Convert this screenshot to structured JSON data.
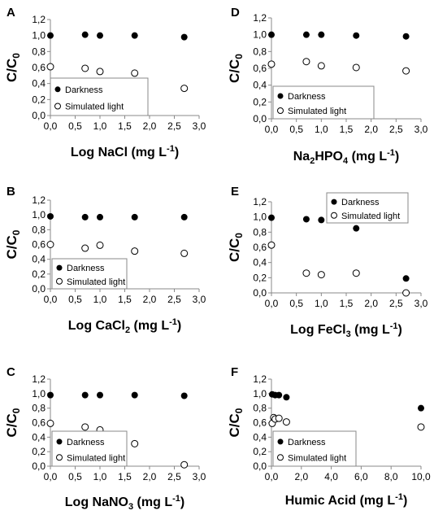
{
  "chart_data": [
    {
      "id": "A",
      "letter": "A",
      "type": "scatter",
      "ylabel": "C/C",
      "ylabel_sub": "0",
      "xlabel": [
        [
          "Log NaCl (mg L",
          "n"
        ],
        [
          "-1",
          "sup"
        ],
        [
          ")",
          "n"
        ]
      ],
      "xlim": [
        0,
        3
      ],
      "ylim": [
        0,
        1.2
      ],
      "xticks": [
        "0,0",
        "0,5",
        "1,0",
        "1,5",
        "2,0",
        "2,5",
        "3,0"
      ],
      "yticks": [
        "0,0",
        "0,2",
        "0,4",
        "0,6",
        "0,8",
        "1,0",
        "1,2"
      ],
      "legend_position": "lower-left",
      "series": [
        {
          "name": "Darkness",
          "marker": "filled",
          "x": [
            0,
            0.7,
            1.0,
            1.7,
            2.7
          ],
          "y": [
            1.0,
            1.01,
            1.0,
            1.0,
            0.98
          ]
        },
        {
          "name": "Simulated light",
          "marker": "open",
          "x": [
            0,
            0.7,
            1.0,
            1.7,
            2.7
          ],
          "y": [
            0.61,
            0.59,
            0.55,
            0.53,
            0.34
          ]
        }
      ]
    },
    {
      "id": "D",
      "letter": "D",
      "type": "scatter",
      "ylabel": "C/C",
      "ylabel_sub": "0",
      "xlabel": [
        [
          "Na",
          "n"
        ],
        [
          "2",
          "sub"
        ],
        [
          "HPO",
          "n"
        ],
        [
          "4",
          "sub"
        ],
        [
          " (mg L",
          "n"
        ],
        [
          "-1",
          "sup"
        ],
        [
          ")",
          "n"
        ]
      ],
      "xlim": [
        0,
        3
      ],
      "ylim": [
        0,
        1.2
      ],
      "xticks": [
        "0,0",
        "0,5",
        "1,0",
        "1,5",
        "2,0",
        "2,5",
        "3,0"
      ],
      "yticks": [
        "0,0",
        "0,2",
        "0,4",
        "0,6",
        "0,8",
        "1,0",
        "1,2"
      ],
      "legend_position": "lower-left",
      "series": [
        {
          "name": "Darkness",
          "marker": "filled",
          "x": [
            0,
            0.7,
            1.0,
            1.7,
            2.7
          ],
          "y": [
            1.0,
            1.0,
            1.0,
            0.99,
            0.98
          ]
        },
        {
          "name": "Simulated light",
          "marker": "open",
          "x": [
            0,
            0.7,
            1.0,
            1.7,
            2.7
          ],
          "y": [
            0.65,
            0.68,
            0.63,
            0.61,
            0.57
          ]
        }
      ]
    },
    {
      "id": "B",
      "letter": "B",
      "type": "scatter",
      "ylabel": "C/C",
      "ylabel_sub": "0",
      "xlabel": [
        [
          "Log CaCl",
          "n"
        ],
        [
          "2",
          "sub"
        ],
        [
          " (mg L",
          "n"
        ],
        [
          "-1",
          "sup"
        ],
        [
          ")",
          "n"
        ]
      ],
      "xlim": [
        0,
        3
      ],
      "ylim": [
        0,
        1.2
      ],
      "xticks": [
        "0,0",
        "0,5",
        "1,0",
        "1,5",
        "2,0",
        "2,5",
        "3,0"
      ],
      "yticks": [
        "0,0",
        "0,2",
        "0,4",
        "0,6",
        "0,8",
        "1,0",
        "1,2"
      ],
      "legend_position": "lower-left",
      "series": [
        {
          "name": "Darkness",
          "marker": "filled",
          "x": [
            0,
            0.7,
            1.0,
            1.7,
            2.7
          ],
          "y": [
            0.98,
            0.97,
            0.97,
            0.97,
            0.97
          ]
        },
        {
          "name": "Simulated light",
          "marker": "open",
          "x": [
            0,
            0.7,
            1.0,
            1.7,
            2.7
          ],
          "y": [
            0.6,
            0.55,
            0.59,
            0.51,
            0.48
          ]
        }
      ]
    },
    {
      "id": "E",
      "letter": "E",
      "type": "scatter",
      "ylabel": "C/C",
      "ylabel_sub": "0",
      "xlabel": [
        [
          "Log FeCl",
          "n"
        ],
        [
          "3",
          "sub"
        ],
        [
          " (mg L",
          "n"
        ],
        [
          "-1",
          "sup"
        ],
        [
          ")",
          "n"
        ]
      ],
      "xlim": [
        0,
        3
      ],
      "ylim": [
        0,
        1.2
      ],
      "xticks": [
        "0,0",
        "0,5",
        "1,0",
        "1,5",
        "2,0",
        "2,5",
        "3,0"
      ],
      "yticks": [
        "0,0",
        "0,2",
        "0,4",
        "0,6",
        "0,8",
        "1,0",
        "1,2"
      ],
      "legend_position": "top-right",
      "series": [
        {
          "name": "Darkness",
          "marker": "filled",
          "x": [
            0,
            0.7,
            1.0,
            1.7,
            2.7
          ],
          "y": [
            0.99,
            0.97,
            0.96,
            0.85,
            0.19
          ]
        },
        {
          "name": "Simulated light",
          "marker": "open",
          "x": [
            0,
            0.7,
            1.0,
            1.7,
            2.7
          ],
          "y": [
            0.63,
            0.26,
            0.24,
            0.26,
            0.0
          ]
        }
      ]
    },
    {
      "id": "C",
      "letter": "C",
      "type": "scatter",
      "ylabel": "C/C",
      "ylabel_sub": "0",
      "xlabel": [
        [
          "Log NaNO",
          "n"
        ],
        [
          "3",
          "sub"
        ],
        [
          " (mg L",
          "n"
        ],
        [
          "-1",
          "sup"
        ],
        [
          ")",
          "n"
        ]
      ],
      "xlim": [
        0,
        3
      ],
      "ylim": [
        0,
        1.2
      ],
      "xticks": [
        "0,0",
        "0,5",
        "1,0",
        "1,5",
        "2,0",
        "2,5",
        "3,0"
      ],
      "yticks": [
        "0,0",
        "0,2",
        "0,4",
        "0,6",
        "0,8",
        "1,0",
        "1,2"
      ],
      "legend_position": "lower-left",
      "series": [
        {
          "name": "Darkness",
          "marker": "filled",
          "x": [
            0,
            0.7,
            1.0,
            1.7,
            2.7
          ],
          "y": [
            0.98,
            0.98,
            0.98,
            0.98,
            0.97
          ]
        },
        {
          "name": "Simulated light",
          "marker": "open",
          "x": [
            0,
            0.7,
            1.0,
            1.7,
            2.7
          ],
          "y": [
            0.59,
            0.54,
            0.5,
            0.31,
            0.02
          ]
        }
      ]
    },
    {
      "id": "F",
      "letter": "F",
      "type": "scatter",
      "ylabel": "C/C",
      "ylabel_sub": "0",
      "xlabel": [
        [
          "Humic Acid (mg L",
          "n"
        ],
        [
          "-1",
          "sup"
        ],
        [
          ")",
          "n"
        ]
      ],
      "xlim": [
        0,
        10
      ],
      "ylim": [
        0,
        1.2
      ],
      "xticks": [
        "0,0",
        "2,0",
        "4,0",
        "6,0",
        "8,0",
        "10,0"
      ],
      "yticks": [
        "0,0",
        "0,2",
        "0,4",
        "0,6",
        "0,8",
        "1,0",
        "1,2"
      ],
      "legend_position": "lower-left",
      "series": [
        {
          "name": "Darkness",
          "marker": "filled",
          "x": [
            0.05,
            0.25,
            0.5,
            1.0,
            10.0
          ],
          "y": [
            0.99,
            0.98,
            0.98,
            0.95,
            0.8
          ]
        },
        {
          "name": "Simulated light",
          "marker": "open",
          "x": [
            0.05,
            0.15,
            0.25,
            0.5,
            1.0,
            10.0
          ],
          "y": [
            0.59,
            0.67,
            0.65,
            0.66,
            0.61,
            0.54
          ]
        }
      ]
    }
  ]
}
